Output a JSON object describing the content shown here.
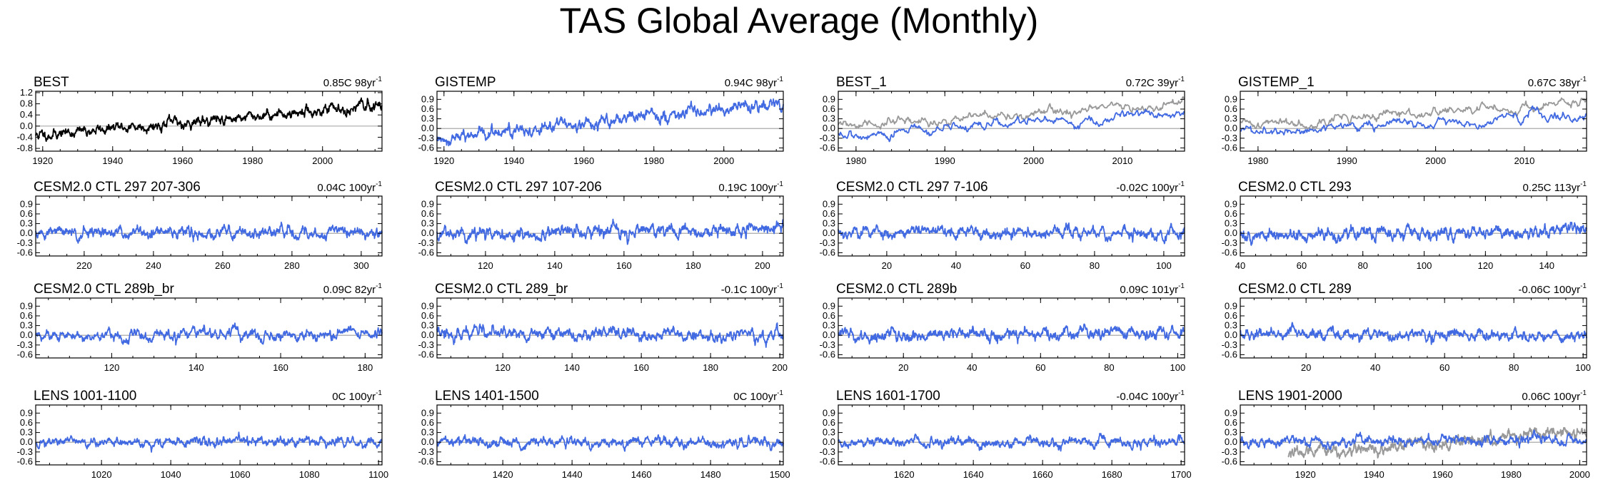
{
  "title": "TAS Global Average (Monthly)",
  "colors": {
    "obs": "#000000",
    "model": "#4169e1",
    "reference": "#999999",
    "zero_line": "#aaaaaa"
  },
  "chart_data": [
    {
      "type": "line",
      "title": "BEST",
      "trend": "0.85C 98yr",
      "trend_exp": "-1",
      "xlim": [
        1918,
        2017
      ],
      "xticks": [
        1920,
        1940,
        1960,
        1980,
        2000
      ],
      "ylim": [
        -0.9,
        1.25
      ],
      "yticks": [
        "1.2",
        "0.8",
        "0.4",
        "0.0",
        "-0.4",
        "-0.8"
      ],
      "yvals": [
        1.2,
        0.8,
        0.4,
        0.0,
        -0.4,
        -0.8
      ],
      "series": [
        {
          "name": "BEST",
          "color": "#000000",
          "start": -0.33,
          "end": 0.75,
          "noise": 0.1,
          "seed": 11
        }
      ]
    },
    {
      "type": "line",
      "title": "GISTEMP",
      "trend": "0.94C 98yr",
      "trend_exp": "-1",
      "xlim": [
        1918,
        2017
      ],
      "xticks": [
        1920,
        1940,
        1960,
        1980,
        2000
      ],
      "ylim": [
        -0.7,
        1.15
      ],
      "yticks": [
        "0.9",
        "0.6",
        "0.3",
        "0.0",
        "-0.3",
        "-0.6"
      ],
      "yvals": [
        0.9,
        0.6,
        0.3,
        0.0,
        -0.3,
        -0.6
      ],
      "series": [
        {
          "name": "GISTEMP",
          "color": "#4169e1",
          "start": -0.32,
          "end": 0.8,
          "noise": 0.1,
          "seed": 12
        }
      ]
    },
    {
      "type": "line",
      "title": "BEST_1",
      "trend": "0.72C 39yr",
      "trend_exp": "-1",
      "xlim": [
        1978,
        2017
      ],
      "xticks": [
        1980,
        1990,
        2000,
        2010
      ],
      "ylim": [
        -0.7,
        1.15
      ],
      "yticks": [
        "0.9",
        "0.6",
        "0.3",
        "0.0",
        "-0.3",
        "-0.6"
      ],
      "yvals": [
        0.9,
        0.6,
        0.3,
        0.0,
        -0.3,
        -0.6
      ],
      "series": [
        {
          "name": "reference",
          "color": "#999999",
          "start": 0.05,
          "end": 0.75,
          "noise": 0.09,
          "seed": 31
        },
        {
          "name": "BEST_1",
          "color": "#4169e1",
          "start": -0.22,
          "end": 0.45,
          "noise": 0.09,
          "seed": 32
        }
      ]
    },
    {
      "type": "line",
      "title": "GISTEMP_1",
      "trend": "0.67C 38yr",
      "trend_exp": "-1",
      "xlim": [
        1978,
        2017
      ],
      "xticks": [
        1980,
        1990,
        2000,
        2010
      ],
      "ylim": [
        -0.7,
        1.15
      ],
      "yticks": [
        "0.9",
        "0.6",
        "0.3",
        "0.0",
        "-0.3",
        "-0.6"
      ],
      "yvals": [
        0.9,
        0.6,
        0.3,
        0.0,
        -0.3,
        -0.6
      ],
      "series": [
        {
          "name": "reference",
          "color": "#999999",
          "start": 0.12,
          "end": 0.78,
          "noise": 0.09,
          "seed": 41
        },
        {
          "name": "GISTEMP_1",
          "color": "#4169e1",
          "start": -0.15,
          "end": 0.45,
          "noise": 0.09,
          "seed": 42
        }
      ]
    },
    {
      "type": "line",
      "title": "CESM2.0 CTL 297 207-306",
      "trend": "0.04C 100yr",
      "trend_exp": "-1",
      "xlim": [
        206,
        306
      ],
      "xticks": [
        220,
        240,
        260,
        280,
        300
      ],
      "ylim": [
        -0.7,
        1.15
      ],
      "yticks": [
        "0.9",
        "0.6",
        "0.3",
        "0.0",
        "-0.3",
        "-0.6"
      ],
      "yvals": [
        0.9,
        0.6,
        0.3,
        0.0,
        -0.3,
        -0.6
      ],
      "series": [
        {
          "name": "model",
          "color": "#4169e1",
          "start": 0.0,
          "end": 0.04,
          "noise": 0.1,
          "seed": 51
        }
      ]
    },
    {
      "type": "line",
      "title": "CESM2.0 CTL 297 107-206",
      "trend": "0.19C 100yr",
      "trend_exp": "-1",
      "xlim": [
        106,
        206
      ],
      "xticks": [
        120,
        140,
        160,
        180,
        200
      ],
      "ylim": [
        -0.7,
        1.15
      ],
      "yticks": [
        "0.9",
        "0.6",
        "0.3",
        "0.0",
        "-0.3",
        "-0.6"
      ],
      "yvals": [
        0.9,
        0.6,
        0.3,
        0.0,
        -0.3,
        -0.6
      ],
      "series": [
        {
          "name": "model",
          "color": "#4169e1",
          "start": -0.05,
          "end": 0.15,
          "noise": 0.11,
          "seed": 52
        }
      ]
    },
    {
      "type": "line",
      "title": "CESM2.0 CTL 297 7-106",
      "trend": "-0.02C 100yr",
      "trend_exp": "-1",
      "xlim": [
        6,
        106
      ],
      "xticks": [
        20,
        40,
        60,
        80,
        100
      ],
      "ylim": [
        -0.7,
        1.15
      ],
      "yticks": [
        "0.9",
        "0.6",
        "0.3",
        "0.0",
        "-0.3",
        "-0.6"
      ],
      "yvals": [
        0.9,
        0.6,
        0.3,
        0.0,
        -0.3,
        -0.6
      ],
      "series": [
        {
          "name": "model",
          "color": "#4169e1",
          "start": 0.05,
          "end": 0.0,
          "noise": 0.1,
          "seed": 53
        }
      ]
    },
    {
      "type": "line",
      "title": "CESM2.0 CTL 293",
      "trend": "0.25C 113yr",
      "trend_exp": "-1",
      "xlim": [
        40,
        153
      ],
      "xticks": [
        40,
        60,
        80,
        100,
        120,
        140
      ],
      "ylim": [
        -0.7,
        1.15
      ],
      "yticks": [
        "0.9",
        "0.6",
        "0.3",
        "0.0",
        "-0.3",
        "-0.6"
      ],
      "yvals": [
        0.9,
        0.6,
        0.3,
        0.0,
        -0.3,
        -0.6
      ],
      "series": [
        {
          "name": "model",
          "color": "#4169e1",
          "start": -0.08,
          "end": 0.12,
          "noise": 0.1,
          "seed": 54
        }
      ]
    },
    {
      "type": "line",
      "title": "CESM2.0 CTL 289b_br",
      "trend": "0.09C 82yr",
      "trend_exp": "-1",
      "xlim": [
        102,
        184
      ],
      "xticks": [
        120,
        140,
        160,
        180
      ],
      "ylim": [
        -0.7,
        1.15
      ],
      "yticks": [
        "0.9",
        "0.6",
        "0.3",
        "0.0",
        "-0.3",
        "-0.6"
      ],
      "yvals": [
        0.9,
        0.6,
        0.3,
        0.0,
        -0.3,
        -0.6
      ],
      "series": [
        {
          "name": "model",
          "color": "#4169e1",
          "start": -0.02,
          "end": 0.06,
          "noise": 0.1,
          "seed": 61
        }
      ]
    },
    {
      "type": "line",
      "title": "CESM2.0 CTL 289_br",
      "trend": "-0.1C 100yr",
      "trend_exp": "-1",
      "xlim": [
        101,
        201
      ],
      "xticks": [
        120,
        140,
        160,
        180,
        200
      ],
      "ylim": [
        -0.7,
        1.15
      ],
      "yticks": [
        "0.9",
        "0.6",
        "0.3",
        "0.0",
        "-0.3",
        "-0.6"
      ],
      "yvals": [
        0.9,
        0.6,
        0.3,
        0.0,
        -0.3,
        -0.6
      ],
      "series": [
        {
          "name": "model",
          "color": "#4169e1",
          "start": 0.08,
          "end": -0.02,
          "noise": 0.1,
          "seed": 62
        }
      ]
    },
    {
      "type": "line",
      "title": "CESM2.0 CTL 289b",
      "trend": "0.09C 101yr",
      "trend_exp": "-1",
      "xlim": [
        1,
        102
      ],
      "xticks": [
        20,
        40,
        60,
        80,
        100
      ],
      "ylim": [
        -0.7,
        1.15
      ],
      "yticks": [
        "0.9",
        "0.6",
        "0.3",
        "0.0",
        "-0.3",
        "-0.6"
      ],
      "yvals": [
        0.9,
        0.6,
        0.3,
        0.0,
        -0.3,
        -0.6
      ],
      "series": [
        {
          "name": "model",
          "color": "#4169e1",
          "start": -0.02,
          "end": 0.07,
          "noise": 0.1,
          "seed": 63
        }
      ]
    },
    {
      "type": "line",
      "title": "CESM2.0 CTL 289",
      "trend": "-0.06C 100yr",
      "trend_exp": "-1",
      "xlim": [
        1,
        101
      ],
      "xticks": [
        20,
        40,
        60,
        80,
        100
      ],
      "ylim": [
        -0.7,
        1.15
      ],
      "yticks": [
        "0.9",
        "0.6",
        "0.3",
        "0.0",
        "-0.3",
        "-0.6"
      ],
      "yvals": [
        0.9,
        0.6,
        0.3,
        0.0,
        -0.3,
        -0.6
      ],
      "series": [
        {
          "name": "model",
          "color": "#4169e1",
          "start": 0.04,
          "end": -0.02,
          "noise": 0.09,
          "seed": 64
        }
      ]
    },
    {
      "type": "line",
      "title": "LENS 1001-1100",
      "trend": "0C 100yr",
      "trend_exp": "-1",
      "xlim": [
        1001,
        1101
      ],
      "xticks": [
        1020,
        1040,
        1060,
        1080,
        1100
      ],
      "ylim": [
        -0.7,
        1.15
      ],
      "yticks": [
        "0.9",
        "0.6",
        "0.3",
        "0.0",
        "-0.3",
        "-0.6"
      ],
      "yvals": [
        0.9,
        0.6,
        0.3,
        0.0,
        -0.3,
        -0.6
      ],
      "series": [
        {
          "name": "model",
          "color": "#4169e1",
          "start": 0.0,
          "end": 0.0,
          "noise": 0.08,
          "seed": 71
        }
      ]
    },
    {
      "type": "line",
      "title": "LENS 1401-1500",
      "trend": "0C 100yr",
      "trend_exp": "-1",
      "xlim": [
        1401,
        1501
      ],
      "xticks": [
        1420,
        1440,
        1460,
        1480,
        1500
      ],
      "ylim": [
        -0.7,
        1.15
      ],
      "yticks": [
        "0.9",
        "0.6",
        "0.3",
        "0.0",
        "-0.3",
        "-0.6"
      ],
      "yvals": [
        0.9,
        0.6,
        0.3,
        0.0,
        -0.3,
        -0.6
      ],
      "series": [
        {
          "name": "model",
          "color": "#4169e1",
          "start": 0.0,
          "end": 0.0,
          "noise": 0.08,
          "seed": 72
        }
      ]
    },
    {
      "type": "line",
      "title": "LENS 1601-1700",
      "trend": "-0.04C 100yr",
      "trend_exp": "-1",
      "xlim": [
        1601,
        1701
      ],
      "xticks": [
        1620,
        1640,
        1660,
        1680,
        1700
      ],
      "ylim": [
        -0.7,
        1.15
      ],
      "yticks": [
        "0.9",
        "0.6",
        "0.3",
        "0.0",
        "-0.3",
        "-0.6"
      ],
      "yvals": [
        0.9,
        0.6,
        0.3,
        0.0,
        -0.3,
        -0.6
      ],
      "series": [
        {
          "name": "model",
          "color": "#4169e1",
          "start": 0.02,
          "end": -0.02,
          "noise": 0.08,
          "seed": 73
        }
      ]
    },
    {
      "type": "line",
      "title": "LENS 1901-2000",
      "trend": "0.06C 100yr",
      "trend_exp": "-1",
      "xlim": [
        1901,
        2002
      ],
      "xticks": [
        1920,
        1940,
        1960,
        1980,
        2000
      ],
      "ylim": [
        -0.7,
        1.15
      ],
      "yticks": [
        "0.9",
        "0.6",
        "0.3",
        "0.0",
        "-0.3",
        "-0.6"
      ],
      "yvals": [
        0.9,
        0.6,
        0.3,
        0.0,
        -0.3,
        -0.6
      ],
      "series": [
        {
          "name": "reference",
          "color": "#999999",
          "start": -0.35,
          "end": 0.35,
          "noise": 0.1,
          "seed": 81,
          "from": 1915
        },
        {
          "name": "model",
          "color": "#4169e1",
          "start": 0.0,
          "end": 0.06,
          "noise": 0.08,
          "seed": 82
        }
      ]
    }
  ]
}
